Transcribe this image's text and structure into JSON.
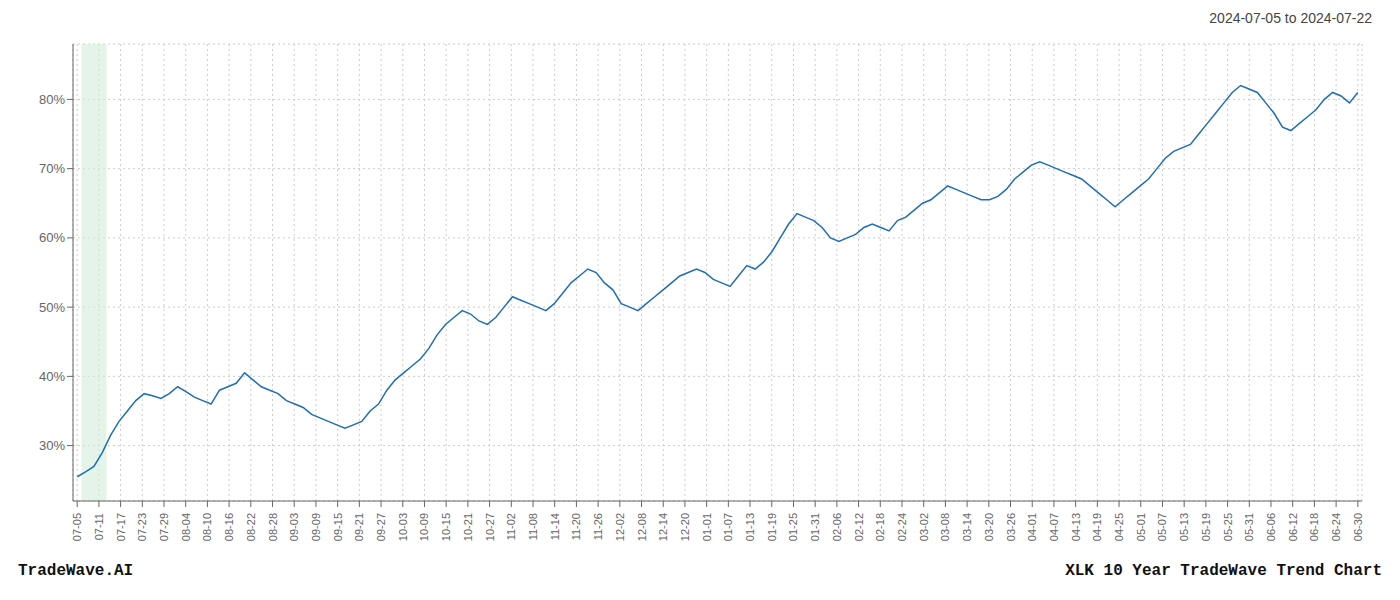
{
  "chart_data": {
    "type": "line",
    "title": "2024-07-05 to 2024-07-22",
    "annotations": [
      "TradeWave.AI",
      "XLK 10 Year TradeWave Trend Chart"
    ],
    "color": "#1f6eb5",
    "grid": true,
    "highlight": {
      "x": [
        0.5,
        3.5
      ],
      "color": "#d4edda"
    },
    "xlim": [
      -0.5,
      153.5
    ],
    "ylim": [
      22,
      88
    ],
    "yticks": [
      {
        "value": 30,
        "label": "30%"
      },
      {
        "value": 40,
        "label": "40%"
      },
      {
        "value": 50,
        "label": "50%"
      },
      {
        "value": 60,
        "label": "60%"
      },
      {
        "value": 70,
        "label": "70%"
      },
      {
        "value": 80,
        "label": "80%"
      }
    ],
    "xticks": [
      {
        "value": 0,
        "label": "07-05"
      },
      {
        "value": 2.593220338983,
        "label": "07-11"
      },
      {
        "value": 5.186440677966,
        "label": "07-17"
      },
      {
        "value": 7.779661016949,
        "label": "07-23"
      },
      {
        "value": 10.372881355932,
        "label": "07-29"
      },
      {
        "value": 12.966101694915,
        "label": "08-04"
      },
      {
        "value": 15.559322033898,
        "label": "08-10"
      },
      {
        "value": 18.152542372881,
        "label": "08-16"
      },
      {
        "value": 20.745762711864,
        "label": "08-22"
      },
      {
        "value": 23.338983050847,
        "label": "08-28"
      },
      {
        "value": 25.93220338983,
        "label": "09-03"
      },
      {
        "value": 28.525423728813,
        "label": "09-09"
      },
      {
        "value": 31.118644067796,
        "label": "09-15"
      },
      {
        "value": 33.711864406779,
        "label": "09-21"
      },
      {
        "value": 36.305084745762,
        "label": "09-27"
      },
      {
        "value": 38.898305084745,
        "label": "10-03"
      },
      {
        "value": 41.491525423728,
        "label": "10-09"
      },
      {
        "value": 44.084745762711,
        "label": "10-15"
      },
      {
        "value": 46.677966101694,
        "label": "10-21"
      },
      {
        "value": 49.271186440677,
        "label": "10-27"
      },
      {
        "value": 51.864406779661,
        "label": "11-02"
      },
      {
        "value": 54.457627118644,
        "label": "11-08"
      },
      {
        "value": 57.050847457627,
        "label": "11-14"
      },
      {
        "value": 59.64406779661,
        "label": "11-20"
      },
      {
        "value": 62.237288135593,
        "label": "11-26"
      },
      {
        "value": 64.830508474576,
        "label": "12-02"
      },
      {
        "value": 67.423728813559,
        "label": "12-08"
      },
      {
        "value": 70.016949152542,
        "label": "12-14"
      },
      {
        "value": 72.610169491525,
        "label": "12-20"
      },
      {
        "value": 75.203389830508,
        "label": "01-01"
      },
      {
        "value": 77.796610169491,
        "label": "01-07"
      },
      {
        "value": 80.389830508474,
        "label": "01-13"
      },
      {
        "value": 82.983050847457,
        "label": "01-19"
      },
      {
        "value": 85.57627118644,
        "label": "01-25"
      },
      {
        "value": 88.169491525423,
        "label": "01-31"
      },
      {
        "value": 90.762711864406,
        "label": "02-06"
      },
      {
        "value": 93.355932203389,
        "label": "02-12"
      },
      {
        "value": 95.949152542372,
        "label": "02-18"
      },
      {
        "value": 98.542372881355,
        "label": "02-24"
      },
      {
        "value": 101.135593220338,
        "label": "03-02"
      },
      {
        "value": 103.728813559322,
        "label": "03-08"
      },
      {
        "value": 106.322033898305,
        "label": "03-14"
      },
      {
        "value": 108.915254237288,
        "label": "03-20"
      },
      {
        "value": 111.508474576271,
        "label": "03-26"
      },
      {
        "value": 114.101694915254,
        "label": "04-01"
      },
      {
        "value": 116.694915254237,
        "label": "04-07"
      },
      {
        "value": 119.28813559322,
        "label": "04-13"
      },
      {
        "value": 121.881355932203,
        "label": "04-19"
      },
      {
        "value": 124.474576271186,
        "label": "04-25"
      },
      {
        "value": 127.067796610169,
        "label": "05-01"
      },
      {
        "value": 129.661016949152,
        "label": "05-07"
      },
      {
        "value": 132.254237288135,
        "label": "05-13"
      },
      {
        "value": 134.847457627118,
        "label": "05-19"
      },
      {
        "value": 137.440677966101,
        "label": "05-25"
      },
      {
        "value": 140.033898305084,
        "label": "05-31"
      },
      {
        "value": 142.627118644067,
        "label": "06-06"
      },
      {
        "value": 145.22033898305,
        "label": "06-12"
      },
      {
        "value": 147.813559322033,
        "label": "06-18"
      },
      {
        "value": 150.406779661016,
        "label": "06-24"
      },
      {
        "value": 153,
        "label": "06-30"
      }
    ],
    "x": [
      0,
      1,
      2,
      3,
      4,
      5,
      6,
      7,
      8,
      9,
      10,
      11,
      12,
      13,
      14,
      15,
      16,
      17,
      18,
      19,
      20,
      21,
      22,
      23,
      24,
      25,
      26,
      27,
      28,
      29,
      30,
      31,
      32,
      33,
      34,
      35,
      36,
      37,
      38,
      39,
      40,
      41,
      42,
      43,
      44,
      45,
      46,
      47,
      48,
      49,
      50,
      51,
      52,
      53,
      54,
      55,
      56,
      57,
      58,
      59,
      60,
      61,
      62,
      63,
      64,
      65,
      66,
      67,
      68,
      69,
      70,
      71,
      72,
      73,
      74,
      75,
      76,
      77,
      78,
      79,
      80,
      81,
      82,
      83,
      84,
      85,
      86,
      87,
      88,
      89,
      90,
      91,
      92,
      93,
      94,
      95,
      96,
      97,
      98,
      99,
      100,
      101,
      102,
      103,
      104,
      105,
      106,
      107,
      108,
      109,
      110,
      111,
      112,
      113,
      114,
      115,
      116,
      117,
      118,
      119,
      120,
      121,
      122,
      123,
      124,
      125,
      126,
      127,
      128,
      129,
      130,
      131,
      132,
      133,
      134,
      135,
      136,
      137,
      138,
      139,
      140,
      141,
      142,
      143,
      144,
      145,
      146,
      147,
      148,
      149,
      150,
      151,
      152,
      153
    ],
    "values": [
      25.5,
      26.2,
      27.0,
      29.0,
      31.5,
      33.5,
      35.0,
      36.5,
      37.5,
      37.2,
      36.8,
      37.5,
      38.5,
      37.8,
      37.0,
      36.5,
      36.0,
      38.0,
      38.5,
      39.0,
      40.5,
      39.5,
      38.5,
      38.0,
      37.5,
      36.5,
      36.0,
      35.5,
      34.5,
      34.0,
      33.5,
      33.0,
      32.5,
      33.0,
      33.5,
      35.0,
      36.0,
      38.0,
      39.5,
      40.5,
      41.5,
      42.5,
      44.0,
      46.0,
      47.5,
      48.5,
      49.5,
      49.0,
      48.0,
      47.5,
      48.5,
      50.0,
      51.5,
      51.0,
      50.5,
      50.0,
      49.5,
      50.5,
      52.0,
      53.5,
      54.5,
      55.5,
      55.0,
      53.5,
      52.5,
      50.5,
      50.0,
      49.5,
      50.5,
      51.5,
      52.5,
      53.5,
      54.5,
      55.0,
      55.5,
      55.0,
      54.0,
      53.5,
      53.0,
      54.5,
      56.0,
      55.5,
      56.5,
      58.0,
      60.0,
      62.0,
      63.5,
      63.0,
      62.5,
      61.5,
      60.0,
      59.5,
      60.0,
      60.5,
      61.5,
      62.0,
      61.5,
      61.0,
      62.5,
      63.0,
      64.0,
      65.0,
      65.5,
      66.5,
      67.5,
      67.0,
      66.5,
      66.0,
      65.5,
      65.5,
      66.0,
      67.0,
      68.5,
      69.5,
      70.5,
      71.0,
      70.5,
      70.0,
      69.5,
      69.0,
      68.5,
      67.5,
      66.5,
      65.5,
      64.5,
      65.5,
      66.5,
      67.5,
      68.5,
      70.0,
      71.5,
      72.5,
      73.0,
      73.5,
      75.0,
      76.5,
      78.0,
      79.5,
      81.0,
      82.0,
      81.5,
      81.0,
      79.5,
      78.0,
      76.0,
      75.5,
      76.5,
      77.5,
      78.5,
      80.0,
      81.0,
      80.5,
      79.5,
      81.0
    ]
  }
}
